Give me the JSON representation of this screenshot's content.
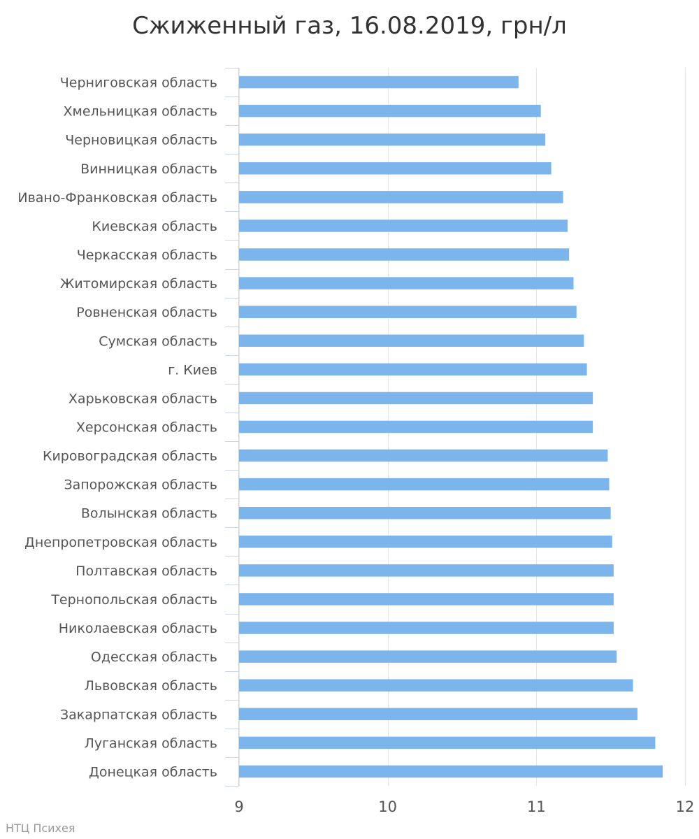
{
  "chart_data": {
    "type": "bar",
    "orientation": "horizontal",
    "title": "Сжиженный газ, 16.08.2019, грн/л",
    "xlabel": "",
    "ylabel": "",
    "xlim": [
      9,
      12
    ],
    "x_ticks": [
      "9",
      "10",
      "11",
      "12"
    ],
    "grid": true,
    "categories": [
      "Черниговская область",
      "Хмельницкая область",
      "Черновицкая область",
      "Винницкая область",
      "Ивано-Франковская область",
      "Киевская область",
      "Черкасская область",
      "Житомирская область",
      "Ровненская область",
      "Сумская область",
      "г. Киев",
      "Харьковская область",
      "Херсонская область",
      "Кировоградская область",
      "Запорожская область",
      "Волынская область",
      "Днепропетровская область",
      "Полтавская область",
      "Тернопольская область",
      "Николаевская область",
      "Одесская область",
      "Львовская область",
      "Закарпатская область",
      "Луганская область",
      "Донецкая область"
    ],
    "values": [
      10.88,
      11.03,
      11.06,
      11.1,
      11.18,
      11.21,
      11.22,
      11.25,
      11.27,
      11.32,
      11.34,
      11.38,
      11.38,
      11.48,
      11.49,
      11.5,
      11.51,
      11.52,
      11.52,
      11.52,
      11.54,
      11.65,
      11.68,
      11.8,
      11.85
    ],
    "bar_color": "#7cb5ec",
    "grid_color": "#e6e6e6",
    "axis_color": "#ccd6eb"
  },
  "credit": "НТЦ Психея"
}
